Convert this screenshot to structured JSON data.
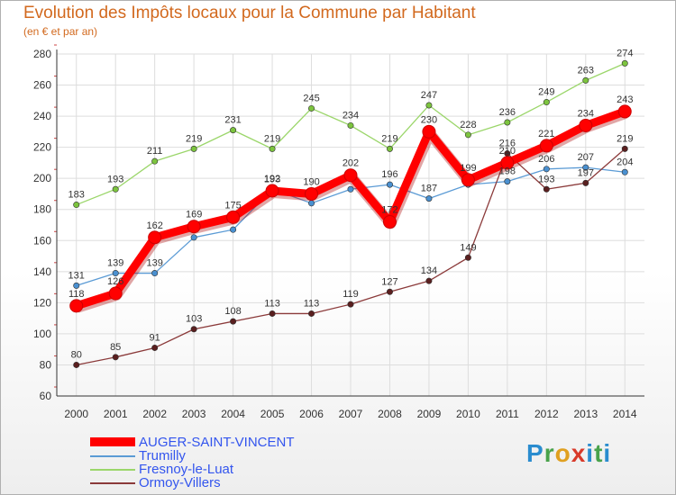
{
  "title": "Evolution des Impôts locaux pour la Commune par Habitant",
  "subtitle": "(en € et par an)",
  "logo": "Proxiti",
  "chart_data": {
    "type": "line",
    "title": "Evolution des Impôts locaux pour la Commune par Habitant",
    "ylabel": "(en € et par an)",
    "xlabel": "",
    "grid": true,
    "ylim": [
      60,
      280
    ],
    "yticks": [
      60,
      80,
      100,
      120,
      140,
      160,
      180,
      200,
      220,
      240,
      260,
      280
    ],
    "x": [
      "2000",
      "2001",
      "2002",
      "2003",
      "2004",
      "2005",
      "2006",
      "2007",
      "2008",
      "2009",
      "2010",
      "2011",
      "2012",
      "2013",
      "2014"
    ],
    "series": [
      {
        "name": "Trumilly",
        "color": "#5b9bd5",
        "point_color": "#4a90d0",
        "values": [
          131,
          139,
          139,
          162,
          167,
          193,
          184,
          193,
          196,
          187,
          196,
          198,
          206,
          207,
          204
        ],
        "labels": [
          "131",
          "139",
          "139",
          "",
          "",
          "193",
          "",
          "",
          "196",
          "187",
          "",
          "198",
          "206",
          "207",
          "204"
        ]
      },
      {
        "name": "Fresnoy-le-Luat",
        "color": "#9bd66a",
        "point_color": "#7cc43e",
        "values": [
          183,
          193,
          211,
          219,
          231,
          219,
          245,
          234,
          219,
          247,
          228,
          236,
          249,
          263,
          274
        ],
        "labels": [
          "183",
          "193",
          "211",
          "219",
          "231",
          "219",
          "245",
          "234",
          "219",
          "247",
          "228",
          "236",
          "249",
          "263",
          "274"
        ]
      },
      {
        "name": "Ormoy-Villers",
        "color": "#8b3a3a",
        "point_color": "#5a1f1f",
        "values": [
          80,
          85,
          91,
          103,
          108,
          113,
          113,
          119,
          127,
          134,
          149,
          216,
          193,
          197,
          219
        ],
        "labels": [
          "80",
          "85",
          "91",
          "103",
          "108",
          "113",
          "113",
          "119",
          "127",
          "134",
          "149",
          "216",
          "193",
          "197",
          "219"
        ]
      },
      {
        "name": "AUGER-SAINT-VINCENT",
        "color": "#ff0000",
        "point_color": "#ff0000",
        "values": [
          118,
          126,
          162,
          169,
          175,
          192,
          190,
          202,
          172,
          230,
          199,
          210,
          221,
          234,
          243
        ],
        "labels": [
          "118",
          "126",
          "162",
          "169",
          "175",
          "192",
          "190",
          "202",
          "172",
          "230",
          "199",
          "210",
          "221",
          "234",
          "243"
        ]
      }
    ],
    "legend": [
      "AUGER-SAINT-VINCENT",
      "Trumilly",
      "Fresnoy-le-Luat",
      "Ormoy-Villers"
    ]
  }
}
